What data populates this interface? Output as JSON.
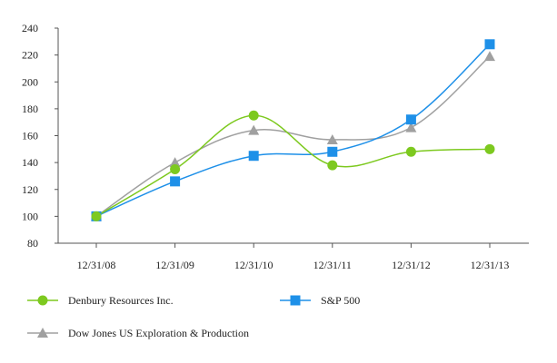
{
  "chart_data": {
    "type": "line",
    "title": "",
    "xlabel": "",
    "ylabel": "",
    "categories": [
      "12/31/08",
      "12/31/09",
      "12/31/10",
      "12/31/11",
      "12/31/12",
      "12/31/13"
    ],
    "ylim": [
      80,
      240
    ],
    "yticks": [
      80,
      100,
      120,
      140,
      160,
      180,
      200,
      220,
      240
    ],
    "grid": false,
    "smooth": true,
    "series": [
      {
        "name": "Denbury Resources Inc.",
        "marker": "circle",
        "color": "#7dc91f",
        "values": [
          100,
          135,
          175,
          138,
          148,
          150
        ]
      },
      {
        "name": "S&P 500",
        "marker": "square",
        "color": "#1e90e8",
        "values": [
          100,
          126,
          145,
          148,
          172,
          228
        ]
      },
      {
        "name": "Dow Jones US Exploration & Production",
        "marker": "triangle",
        "color": "#a0a0a0",
        "values": [
          100,
          140,
          164,
          157,
          166,
          219
        ]
      }
    ]
  }
}
